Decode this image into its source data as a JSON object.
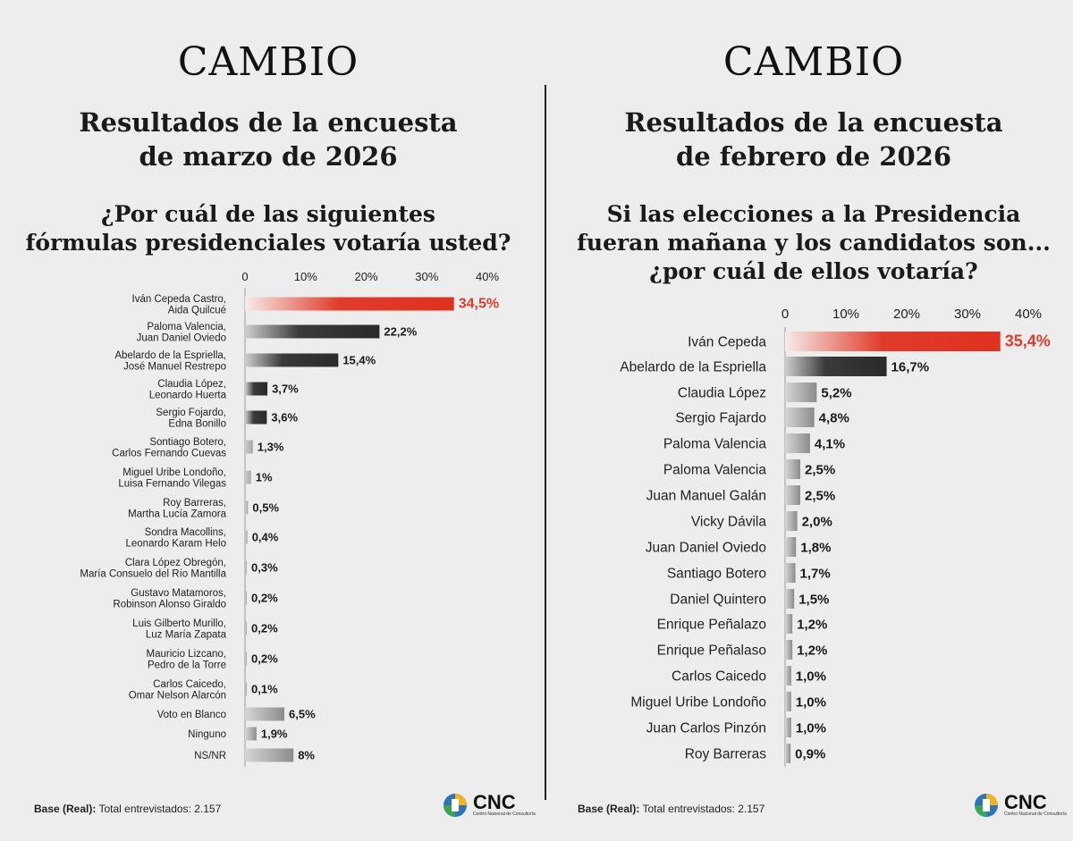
{
  "left": {
    "brand": "CAMBIO",
    "subtitle_line1": "Resultados de la encuesta",
    "subtitle_line2": "de marzo de 2026",
    "question_lines": [
      "¿Por cuál de las siguientes",
      "fórmulas presidenciales votaría usted?"
    ],
    "base_label": "Base (Real):",
    "base_text": "Total entrevistados: 2.157",
    "logo_text": "CNC",
    "logo_sub": "Centro Nacional de Consultoría"
  },
  "right": {
    "brand": "CAMBIO",
    "subtitle_line1": "Resultados de la encuesta",
    "subtitle_line2": "de febrero de 2026",
    "question_lines": [
      "Si las elecciones a la Presidencia",
      "fueran mañana y los candidatos son...",
      "¿por cuál de ellos votaría?"
    ],
    "base_label": "Base (Real):",
    "base_text": "Total entrevistados: 2.157",
    "logo_text": "CNC",
    "logo_sub": "Centro Nacional de Consultoría"
  },
  "colors": {
    "highlight": "#e03c2c",
    "dark": "#3a3a3a",
    "gray": "#8c8c8c",
    "light": "#a8a8a8"
  },
  "chart_data": [
    {
      "type": "bar",
      "orientation": "horizontal",
      "xlim": [
        0,
        40
      ],
      "ticks": [
        "0",
        "10%",
        "20%",
        "30%",
        "40%"
      ],
      "categories": [
        [
          "Iván Cepeda Castro,",
          "Aida Quilcué"
        ],
        [
          "Paloma Valencia,",
          "Juan Daniel Oviedo"
        ],
        [
          "Abelardo de la Espriella,",
          "José Manuel Restrepo"
        ],
        [
          "Claudia López,",
          "Leonardo Huerta"
        ],
        [
          "Sergio Fojardo,",
          "Edna Bonillo"
        ],
        [
          "Sontiago Botero,",
          "Carlos Fernando Cuevas"
        ],
        [
          "Miguel Uribe Londoño,",
          "Luisa Fernando Vilegas"
        ],
        [
          "Roy Barreras,",
          "Martha Lucía Zamora"
        ],
        [
          "Sondra Macollins,",
          "Leonardo Karam Helo"
        ],
        [
          "Clara López Obregón,",
          "María Consuelo del Río Mantilla"
        ],
        [
          "Gustavo Matamoros,",
          "Robinson Alonso Giraldo"
        ],
        [
          "Luis Gilberto Murillo,",
          "Luz María Zapata"
        ],
        [
          "Mauricio Lizcano,",
          "Pedro de la Torre"
        ],
        [
          "Carlos Caicedo,",
          "Omar Nelson Alarcón"
        ],
        [
          "Voto en Blanco"
        ],
        [
          "Ninguno"
        ],
        [
          "NS/NR"
        ]
      ],
      "values": [
        34.5,
        22.2,
        15.4,
        3.7,
        3.6,
        1.3,
        1.0,
        0.5,
        0.4,
        0.3,
        0.2,
        0.2,
        0.2,
        0.1,
        6.5,
        1.9,
        8.0
      ],
      "labels": [
        "34,5%",
        "22,2%",
        "15,4%",
        "3,7%",
        "3,6%",
        "1,3%",
        "1%",
        "0,5%",
        "0,4%",
        "0,3%",
        "0,2%",
        "0,2%",
        "0,2%",
        "0,1%",
        "6,5%",
        "1,9%",
        "8%"
      ],
      "styles": [
        "highlight",
        "dark",
        "dark",
        "dark",
        "dark",
        "light",
        "light",
        "light",
        "light",
        "light",
        "light",
        "light",
        "light",
        "light",
        "gray",
        "gray",
        "gray"
      ]
    },
    {
      "type": "bar",
      "orientation": "horizontal",
      "xlim": [
        0,
        40
      ],
      "ticks": [
        "0",
        "10%",
        "20%",
        "30%",
        "40%"
      ],
      "categories": [
        [
          "Iván Cepeda"
        ],
        [
          "Abelardo de la Espriella"
        ],
        [
          "Claudia López"
        ],
        [
          "Sergio Fajardo"
        ],
        [
          "Paloma Valencia"
        ],
        [
          "Paloma Valencia"
        ],
        [
          "Juan Manuel Galán"
        ],
        [
          "Vicky Dávila"
        ],
        [
          "Juan Daniel Oviedo"
        ],
        [
          "Santiago Botero"
        ],
        [
          "Daniel Quintero"
        ],
        [
          "Enrique Peñalazo"
        ],
        [
          "Enrique Peñalaso"
        ],
        [
          "Carlos Caicedo"
        ],
        [
          "Miguel Uribe Londoño"
        ],
        [
          "Juan Carlos Pinzón"
        ],
        [
          "Roy Barreras"
        ]
      ],
      "values": [
        35.4,
        16.7,
        5.2,
        4.8,
        4.1,
        2.5,
        2.5,
        2.0,
        1.8,
        1.7,
        1.5,
        1.2,
        1.2,
        1.0,
        1.0,
        1.0,
        0.9
      ],
      "labels": [
        "35,4%",
        "16,7%",
        "5,2%",
        "4,8%",
        "4,1%",
        "2,5%",
        "2,5%",
        "2,0%",
        "1,8%",
        "1,7%",
        "1,5%",
        "1,2%",
        "1,2%",
        "1,0%",
        "1,0%",
        "1,0%",
        "0,9%"
      ],
      "styles": [
        "highlight",
        "dark",
        "gray",
        "gray",
        "gray",
        "gray",
        "gray",
        "gray",
        "gray",
        "gray",
        "gray",
        "gray",
        "gray",
        "gray",
        "gray",
        "gray",
        "gray"
      ]
    }
  ]
}
